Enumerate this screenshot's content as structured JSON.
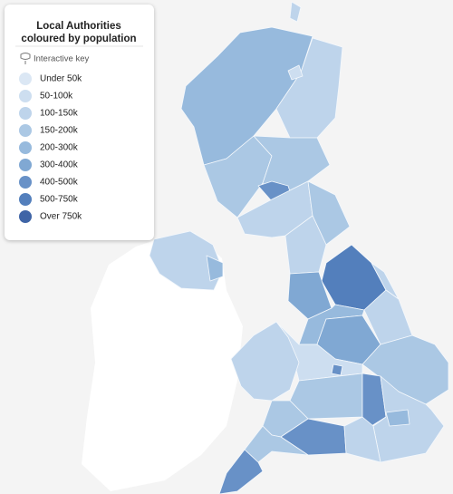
{
  "legend": {
    "title": [
      "Local Authorities",
      "coloured by population"
    ],
    "key_label": "Interactive key",
    "items": [
      {
        "label": "Under 50k",
        "color": "#dbe7f4"
      },
      {
        "label": "50-100k",
        "color": "#cddef0"
      },
      {
        "label": "100-150k",
        "color": "#bed4eb"
      },
      {
        "label": "150-200k",
        "color": "#abc8e4"
      },
      {
        "label": "200-300k",
        "color": "#97badd"
      },
      {
        "label": "300-400k",
        "color": "#80a8d3"
      },
      {
        "label": "400-500k",
        "color": "#6891c7"
      },
      {
        "label": "500-750k",
        "color": "#537fbc"
      },
      {
        "label": "Over 750k",
        "color": "#3f64a6"
      }
    ]
  }
}
